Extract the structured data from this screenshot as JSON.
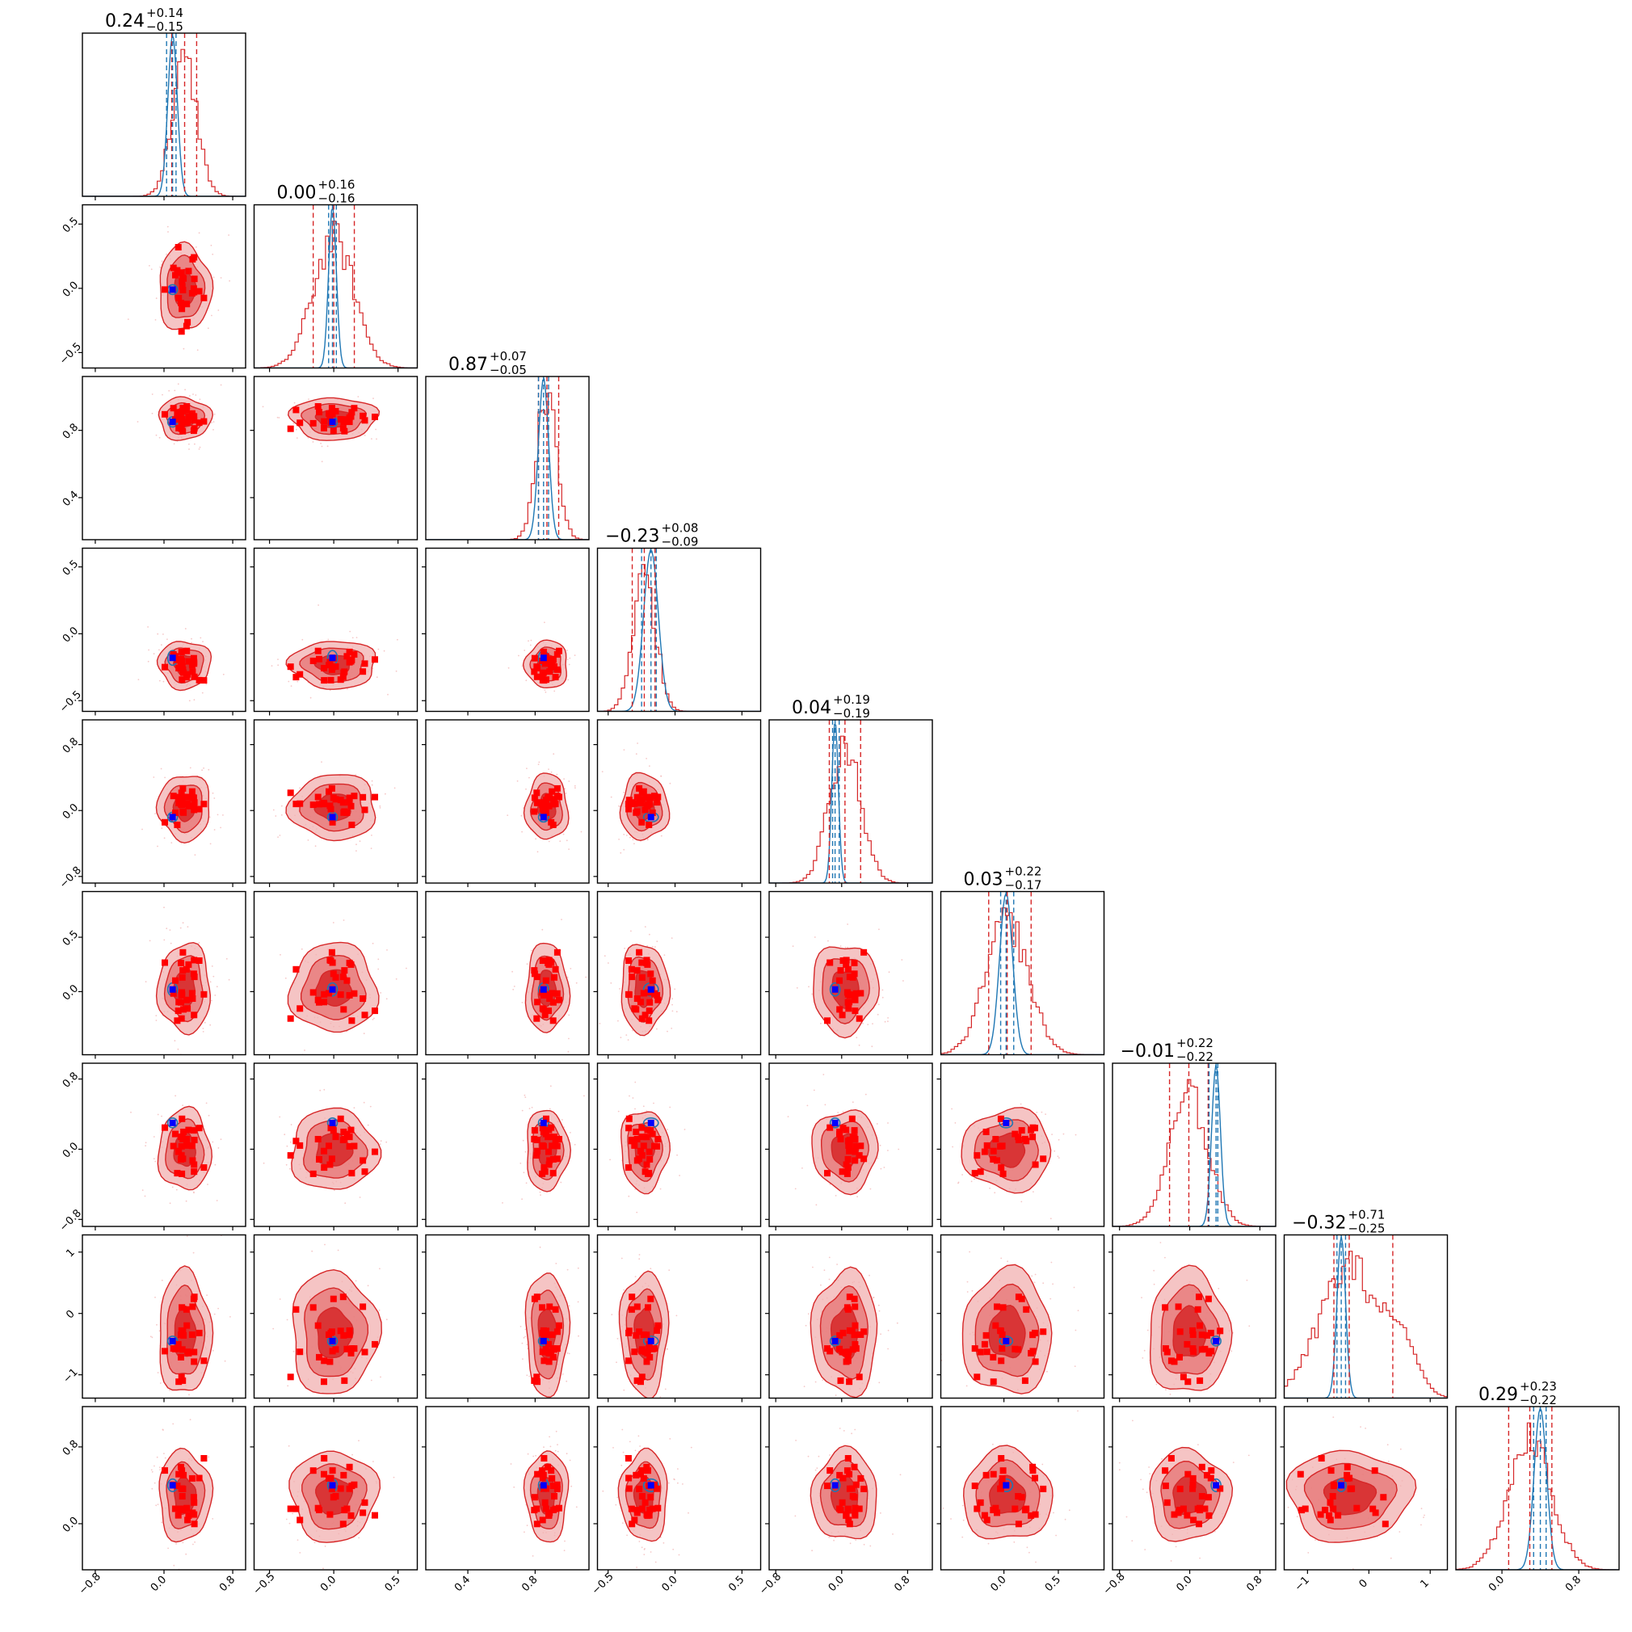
{
  "chart_data": {
    "type": "corner",
    "n_params": 9,
    "colors": {
      "posterior": "#d62728",
      "fill_dark": "#d62728",
      "fill_mid": "#e57373",
      "fill_light": "#f1b0b0",
      "reference": "#1f77b4",
      "points": "#ff0000",
      "truth_marker": "#0000ff"
    },
    "titles": [
      {
        "median": "0.24",
        "plus": "+0.14",
        "minus": "−0.15"
      },
      {
        "median": "0.00",
        "plus": "+0.16",
        "minus": "−0.16"
      },
      {
        "median": "0.87",
        "plus": "+0.07",
        "minus": "−0.05"
      },
      {
        "median": "−0.23",
        "plus": "+0.08",
        "minus": "−0.09"
      },
      {
        "median": "0.04",
        "plus": "+0.19",
        "minus": "−0.19"
      },
      {
        "median": "0.03",
        "plus": "+0.22",
        "minus": "−0.17"
      },
      {
        "median": "−0.01",
        "plus": "+0.22",
        "minus": "−0.22"
      },
      {
        "median": "−0.32",
        "plus": "+0.71",
        "minus": "−0.25"
      },
      {
        "median": "0.29",
        "plus": "+0.23",
        "minus": "−0.22"
      }
    ],
    "params": [
      {
        "median": 0.24,
        "lo": 0.09,
        "hi": 0.38,
        "ref": 0.1,
        "ref_lo": 0.03,
        "ref_hi": 0.14,
        "range": [
          -0.95,
          0.95
        ],
        "ticks": [
          "−0.8",
          "0.0",
          "0.8"
        ],
        "tick_values": [
          -0.8,
          0.0,
          0.8
        ],
        "ytick_labels": [],
        "ytick_values": []
      },
      {
        "median": 0.0,
        "lo": -0.16,
        "hi": 0.16,
        "ref": -0.01,
        "ref_lo": -0.04,
        "ref_hi": 0.02,
        "range": [
          -0.62,
          0.65
        ],
        "ticks": [
          "−0.5",
          "0.0",
          "0.5"
        ],
        "tick_values": [
          -0.5,
          0.0,
          0.5
        ],
        "ytick_labels": [
          "0.5",
          "0.0",
          "−0.5"
        ],
        "ytick_values": [
          0.5,
          0.0,
          -0.5
        ]
      },
      {
        "median": 0.87,
        "lo": 0.82,
        "hi": 0.94,
        "ref": 0.85,
        "ref_lo": 0.82,
        "ref_hi": 0.88,
        "range": [
          0.15,
          1.12
        ],
        "ticks": [
          "0.4",
          "0.8"
        ],
        "tick_values": [
          0.4,
          0.8
        ],
        "ytick_labels": [
          "0.8",
          "0.4"
        ],
        "ytick_values": [
          0.8,
          0.4
        ]
      },
      {
        "median": -0.23,
        "lo": -0.32,
        "hi": -0.15,
        "ref": -0.18,
        "ref_lo": -0.25,
        "ref_hi": -0.14,
        "range": [
          -0.58,
          0.64
        ],
        "ticks": [
          "−0.5",
          "0.0",
          "0.5"
        ],
        "tick_values": [
          -0.5,
          0.0,
          0.5
        ],
        "ytick_labels": [
          "0.5",
          "0.0",
          "−0.5"
        ],
        "ytick_values": [
          0.5,
          0.0,
          -0.5
        ]
      },
      {
        "median": 0.04,
        "lo": -0.15,
        "hi": 0.23,
        "ref": -0.08,
        "ref_lo": -0.11,
        "ref_hi": -0.03,
        "range": [
          -0.88,
          1.1
        ],
        "ticks": [
          "−0.8",
          "0.0",
          "0.8"
        ],
        "tick_values": [
          -0.8,
          0.0,
          0.8
        ],
        "ytick_labels": [
          "0.8",
          "0.0",
          "−0.8"
        ],
        "ytick_values": [
          0.8,
          0.0,
          -0.8
        ]
      },
      {
        "median": 0.03,
        "lo": -0.14,
        "hi": 0.25,
        "ref": 0.02,
        "ref_lo": -0.03,
        "ref_hi": 0.09,
        "range": [
          -0.58,
          0.92
        ],
        "ticks": [
          "0.0",
          "0.5"
        ],
        "tick_values": [
          0.0,
          0.5
        ],
        "ytick_labels": [
          "0.5",
          "0.0"
        ],
        "ytick_values": [
          0.5,
          0.0
        ]
      },
      {
        "median": -0.01,
        "lo": -0.23,
        "hi": 0.21,
        "ref": 0.3,
        "ref_lo": 0.22,
        "ref_hi": 0.32,
        "range": [
          -0.88,
          0.98
        ],
        "ticks": [
          "−0.8",
          "0.0",
          "0.8"
        ],
        "tick_values": [
          -0.8,
          0.0,
          0.8
        ],
        "ytick_labels": [
          "0.8",
          "0.0",
          "−0.8"
        ],
        "ytick_values": [
          0.8,
          0.0,
          -0.8
        ]
      },
      {
        "median": -0.32,
        "lo": -0.57,
        "hi": 0.39,
        "ref": -0.45,
        "ref_lo": -0.52,
        "ref_hi": -0.38,
        "range": [
          -1.38,
          1.28
        ],
        "ticks": [
          "−1",
          "0",
          "1"
        ],
        "tick_values": [
          -1,
          0,
          1
        ],
        "ytick_labels": [
          "1",
          "0",
          "−1"
        ],
        "ytick_values": [
          1,
          0,
          -1
        ]
      },
      {
        "median": 0.29,
        "lo": 0.07,
        "hi": 0.52,
        "ref": 0.4,
        "ref_lo": 0.33,
        "ref_hi": 0.46,
        "range": [
          -0.48,
          1.22
        ],
        "ticks": [
          "0.0",
          "0.8"
        ],
        "tick_values": [
          0.0,
          0.8
        ],
        "ytick_labels": [
          "0.8",
          "0.0"
        ],
        "ytick_values": [
          0.8,
          0.0
        ]
      }
    ],
    "x_ticks_bottom": [
      [
        "−0.8",
        "0.0",
        "0.8"
      ],
      [
        "−0.5",
        "0.0",
        "0.5"
      ],
      [
        "0.4",
        "0.8"
      ],
      [
        "−0.5",
        "0.0",
        "0.5"
      ],
      [
        "−0.8",
        "0.0",
        "0.8"
      ],
      [
        "0.0",
        "0.5"
      ],
      [
        "−0.8",
        "0.0",
        "0.8"
      ],
      [
        "−1",
        "0",
        "1"
      ],
      [
        "0.0",
        "0.8"
      ]
    ],
    "xlabel": "",
    "ylabel": "",
    "grid": false
  }
}
